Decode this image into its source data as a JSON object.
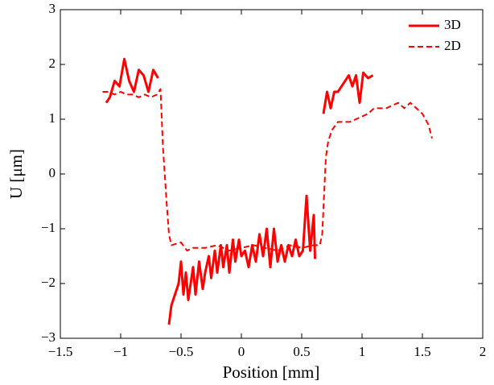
{
  "chart_data": {
    "type": "line",
    "x_label": "Position [mm]",
    "y_label": "U [μm]",
    "xlim": [
      -1.5,
      2
    ],
    "ylim": [
      -3,
      3
    ],
    "xticks": [
      {
        "value": -1.5,
        "label": "−1.5"
      },
      {
        "value": -1,
        "label": "−1"
      },
      {
        "value": -0.5,
        "label": "−0.5"
      },
      0,
      0.5,
      1,
      1.5,
      2
    ],
    "yticks": [
      {
        "value": -3,
        "label": "−3"
      },
      {
        "value": -2,
        "label": "−2"
      },
      {
        "value": -1,
        "label": "−1"
      },
      0,
      1,
      2,
      3
    ],
    "legend": "upper right",
    "series": [
      {
        "name": "3D",
        "color": "#ff0000",
        "dash": "solid",
        "x": [
          -1.12,
          -1.09,
          -1.05,
          -1.01,
          -0.97,
          -0.93,
          -0.89,
          -0.85,
          -0.81,
          -0.77,
          -0.73,
          -0.69,
          null,
          -0.6,
          -0.58,
          -0.55,
          -0.52,
          -0.5,
          -0.48,
          -0.46,
          -0.44,
          -0.42,
          -0.4,
          -0.38,
          -0.35,
          -0.32,
          -0.3,
          -0.27,
          -0.25,
          -0.22,
          -0.2,
          -0.17,
          -0.15,
          -0.12,
          -0.1,
          -0.07,
          -0.05,
          -0.02,
          0,
          0.03,
          0.06,
          0.09,
          0.12,
          0.15,
          0.18,
          0.21,
          0.24,
          0.27,
          0.3,
          0.33,
          0.36,
          0.39,
          0.42,
          0.45,
          0.48,
          0.51,
          0.54,
          0.57,
          0.6,
          0.61,
          null,
          0.68,
          0.71,
          0.74,
          0.77,
          0.8,
          0.83,
          0.86,
          0.89,
          0.92,
          0.95,
          0.98,
          1.01,
          1.05,
          1.09
        ],
        "values": [
          1.3,
          1.4,
          1.7,
          1.6,
          2.1,
          1.7,
          1.5,
          1.9,
          1.8,
          1.5,
          1.9,
          1.75,
          null,
          -2.75,
          -2.4,
          -2.2,
          -2.0,
          -1.6,
          -2.2,
          -1.8,
          -2.3,
          -2.0,
          -1.7,
          -2.2,
          -1.6,
          -2.1,
          -1.8,
          -1.5,
          -1.9,
          -1.4,
          -1.8,
          -1.3,
          -1.7,
          -1.3,
          -1.8,
          -1.2,
          -1.6,
          -1.2,
          -1.5,
          -1.4,
          -1.7,
          -1.3,
          -1.6,
          -1.1,
          -1.5,
          -1.0,
          -1.7,
          -1.0,
          -1.6,
          -1.3,
          -1.6,
          -1.3,
          -1.5,
          -1.2,
          -1.5,
          -1.4,
          -0.4,
          -1.4,
          -0.75,
          -1.55,
          null,
          1.1,
          1.5,
          1.2,
          1.5,
          1.5,
          1.6,
          1.7,
          1.8,
          1.6,
          1.8,
          1.3,
          1.85,
          1.75,
          1.8
        ]
      },
      {
        "name": "2D",
        "color": "#ff0000",
        "dash": "dashed",
        "x": [
          -1.15,
          -1.1,
          -1.05,
          -1,
          -0.95,
          -0.9,
          -0.85,
          -0.8,
          -0.75,
          -0.7,
          -0.67,
          -0.65,
          -0.62,
          -0.6,
          -0.58,
          -0.5,
          -0.45,
          -0.4,
          -0.3,
          -0.2,
          -0.1,
          0,
          0.1,
          0.2,
          0.3,
          0.4,
          0.5,
          0.6,
          0.65,
          0.67,
          0.7,
          0.72,
          0.75,
          0.8,
          0.9,
          1.0,
          1.05,
          1.1,
          1.2,
          1.3,
          1.35,
          1.4,
          1.45,
          1.5,
          1.55,
          1.58
        ],
        "values": [
          1.5,
          1.5,
          1.45,
          1.5,
          1.45,
          1.45,
          1.4,
          1.45,
          1.4,
          1.45,
          1.55,
          0.5,
          -0.5,
          -1.1,
          -1.3,
          -1.25,
          -1.4,
          -1.35,
          -1.35,
          -1.3,
          -1.4,
          -1.35,
          -1.3,
          -1.35,
          -1.4,
          -1.3,
          -1.35,
          -1.3,
          -1.3,
          -1.1,
          0.3,
          0.6,
          0.8,
          0.95,
          0.95,
          1.05,
          1.1,
          1.2,
          1.2,
          1.3,
          1.2,
          1.3,
          1.2,
          1.1,
          0.9,
          0.65
        ]
      }
    ]
  }
}
